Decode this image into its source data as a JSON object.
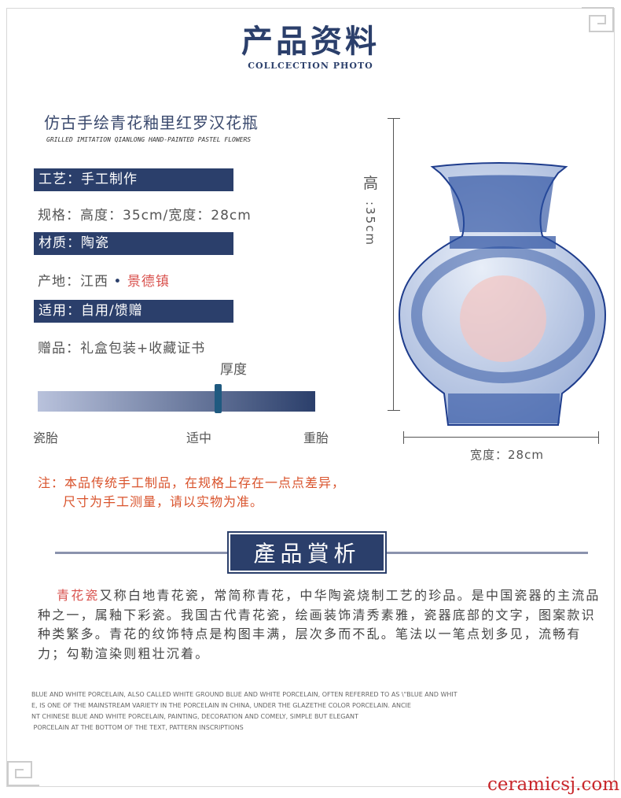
{
  "header": {
    "title": "产品资料",
    "subtitle": "COLLCECTION PHOTO"
  },
  "product": {
    "name": "仿古手绘青花釉里红罗汉花瓶",
    "name_en": "GRILLED IMITATION QIANLONG HAND-PAINTED PASTEL FLOWERS"
  },
  "specs": {
    "craft": "工艺：手工制作",
    "size": "规格：高度：35cm/宽度：28cm",
    "material": "材质：陶瓷",
    "origin_label": "产地：江西",
    "origin_dot": "•",
    "origin_city": "景德镇",
    "usage": "适用：自用/馈赠",
    "gift": "赠品：礼盒包装+收藏证书"
  },
  "thickness": {
    "title": "厚度",
    "left": "瓷胎",
    "middle": "适中",
    "right": "重胎",
    "level": 0.65
  },
  "note": {
    "line1": "注：本品传统手工制品，在规格上存在一点点差异，",
    "line2": "尺寸为手工测量，请以实物为准。"
  },
  "dimensions": {
    "height_label": "高",
    "height_value": ":35cm",
    "width_label": "宽度：28cm"
  },
  "section": {
    "title": "產品賞析"
  },
  "description": {
    "highlight": "青花瓷",
    "text": "又称白地青花瓷，常简称青花，中华陶瓷烧制工艺的珍品。是中国瓷器的主流品种之一，属釉下彩瓷。我国古代青花瓷，绘画装饰清秀素雅，瓷器底部的文字，图案款识种类繁多。青花的纹饰特点是构图丰满，层次多而不乱。笔法以一笔点划多见，流畅有力；勾勒渲染则粗壮沉着。"
  },
  "description_en": {
    "lines": [
      "BLUE AND WHITE PORCELAIN, ALSO CALLED WHITE GROUND BLUE AND WHITE PORCELAIN, OFTEN REFERRED TO AS \\\"BLUE AND WHIT",
      "E, IS ONE OF THE MAINSTREAM VARIETY IN THE PORCELAIN IN CHINA, UNDER THE GLAZETHE COLOR PORCELAIN. ANCIE",
      "NT CHINESE BLUE AND WHITE PORCELAIN, PAINTING, DECORATION AND COMELY, SIMPLE BUT ELEGANT",
      " PORCELAIN AT THE BOTTOM OF THE TEXT, PATTERN INSCRIPTIONS"
    ]
  },
  "watermark": "ceramicsj.com",
  "colors": {
    "navy": "#2b3f6b",
    "accent_red": "#d9534f"
  }
}
